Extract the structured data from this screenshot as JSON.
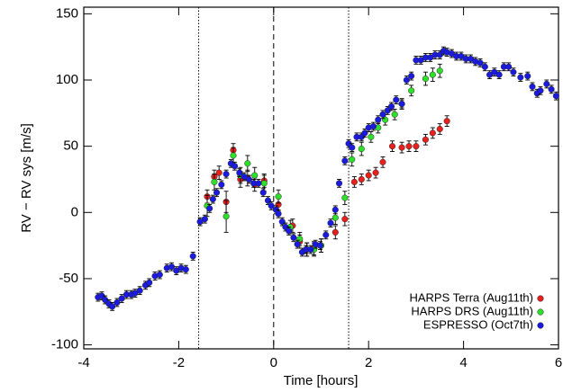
{
  "chart_data": {
    "type": "scatter",
    "xlabel": "Time [hours]",
    "ylabel": "RV − RV sys [m/s]",
    "xlim": [
      -4,
      6
    ],
    "ylim": [
      -103,
      155
    ],
    "xticks": [
      -4,
      -2,
      0,
      2,
      4,
      6
    ],
    "yticks": [
      -100,
      -50,
      0,
      50,
      100,
      150
    ],
    "legend": "lower right",
    "vlines": [
      {
        "x": -1.58,
        "style": "dotted"
      },
      {
        "x": 0,
        "style": "dashed"
      },
      {
        "x": 1.58,
        "style": "dotted"
      }
    ],
    "series": [
      {
        "name": "HARPS Terra (Aug11th)",
        "color": "#e8201c",
        "x": [
          -1.4,
          -1.25,
          -1.15,
          -1.0,
          -0.85,
          -0.7,
          -0.55,
          -0.4,
          -0.2,
          0.1,
          0.4,
          0.55,
          0.7,
          0.85,
          1.0,
          1.3,
          1.5,
          1.7,
          1.85,
          2.0,
          2.15,
          2.3,
          2.5,
          2.7,
          2.85,
          3.0,
          3.2,
          3.35,
          3.5,
          3.65
        ],
        "values": [
          12,
          27,
          30,
          8,
          47,
          25,
          26,
          21,
          24,
          6,
          -10,
          -22,
          -28,
          -27,
          -25,
          -15,
          -5,
          23,
          25,
          28,
          30,
          38,
          50,
          49,
          50,
          50,
          55,
          60,
          63,
          69
        ],
        "errors": [
          5,
          5,
          5,
          8,
          5,
          6,
          6,
          5,
          5,
          5,
          5,
          5,
          5,
          5,
          5,
          5,
          5,
          4,
          4,
          4,
          4,
          4,
          4,
          4,
          4,
          4,
          4,
          4,
          4,
          4
        ]
      },
      {
        "name": "HARPS DRS (Aug11th)",
        "color": "#2ee02a",
        "x": [
          -1.4,
          -1.25,
          -1.0,
          -0.85,
          -0.7,
          -0.55,
          -0.4,
          -0.2,
          0.1,
          0.35,
          0.55,
          0.7,
          0.85,
          1.0,
          1.3,
          1.5,
          1.65,
          1.85,
          2.05,
          2.2,
          2.35,
          2.55,
          2.7,
          2.9,
          3.2,
          3.35,
          3.5
        ],
        "values": [
          5,
          23,
          -3,
          43,
          28,
          37,
          28,
          22,
          12,
          -11,
          -20,
          -28,
          -28,
          -25,
          -4,
          11,
          40,
          48,
          57,
          64,
          70,
          74,
          82,
          92,
          101,
          104,
          107
        ],
        "errors": [
          8,
          6,
          12,
          6,
          6,
          6,
          6,
          6,
          5,
          5,
          5,
          5,
          5,
          5,
          5,
          5,
          5,
          5,
          4,
          4,
          4,
          4,
          4,
          4,
          5,
          5,
          5
        ]
      },
      {
        "name": "ESPRESSO (Oct7th)",
        "color": "#1a1ae0",
        "x": [
          -3.7,
          -3.62,
          -3.55,
          -3.47,
          -3.4,
          -3.3,
          -3.2,
          -3.1,
          -3.0,
          -2.92,
          -2.82,
          -2.7,
          -2.62,
          -2.5,
          -2.4,
          -2.25,
          -2.15,
          -2.05,
          -1.95,
          -1.85,
          -1.7,
          -1.55,
          -1.45,
          -1.35,
          -1.28,
          -1.2,
          -1.1,
          -1.0,
          -0.9,
          -0.82,
          -0.72,
          -0.62,
          -0.52,
          -0.42,
          -0.32,
          -0.22,
          -0.12,
          -0.05,
          0.05,
          0.1,
          0.18,
          0.25,
          0.32,
          0.42,
          0.5,
          0.6,
          0.68,
          0.78,
          0.88,
          0.98,
          1.1,
          1.2,
          1.3,
          1.38,
          1.5,
          1.58,
          1.65,
          1.75,
          1.85,
          1.92,
          2.0,
          2.1,
          2.2,
          2.3,
          2.4,
          2.48,
          2.58,
          2.7,
          2.8,
          2.9,
          3.0,
          3.1,
          3.2,
          3.3,
          3.4,
          3.5,
          3.58,
          3.65,
          3.75,
          3.85,
          3.95,
          4.05,
          4.15,
          4.25,
          4.35,
          4.45,
          4.55,
          4.65,
          4.75,
          4.85,
          4.95,
          5.05,
          5.2,
          5.35,
          5.45,
          5.55,
          5.62,
          5.75,
          5.85,
          5.95
        ],
        "values": [
          -64,
          -63,
          -66,
          -69,
          -71,
          -68,
          -65,
          -62,
          -62,
          -61,
          -59,
          -55,
          -53,
          -48,
          -47,
          -42,
          -41,
          -44,
          -42,
          -43,
          -33,
          -7,
          -5,
          3,
          10,
          15,
          21,
          29,
          37,
          35,
          30,
          27,
          25,
          22,
          22,
          15,
          9,
          5,
          2,
          -1,
          -7,
          -11,
          -14,
          -19,
          -24,
          -30,
          -28,
          -28,
          -24,
          -25,
          -17,
          -8,
          2,
          22,
          39,
          52,
          49,
          57,
          57,
          60,
          64,
          65,
          70,
          74,
          77,
          80,
          85,
          82,
          100,
          103,
          115,
          115,
          117,
          117,
          119,
          119,
          122,
          121,
          120,
          118,
          118,
          116,
          116,
          114,
          113,
          110,
          104,
          106,
          104,
          110,
          110,
          106,
          102,
          103,
          95,
          90,
          92,
          97,
          93,
          88
        ],
        "errors": [
          3,
          3,
          3,
          3,
          3,
          3,
          3,
          3,
          3,
          3,
          3,
          3,
          3,
          3,
          3,
          3,
          3,
          3,
          3,
          3,
          3,
          3,
          3,
          3,
          3,
          3,
          3,
          3,
          3,
          3,
          3,
          3,
          3,
          3,
          3,
          3,
          3,
          3,
          3,
          3,
          3,
          3,
          3,
          3,
          3,
          3,
          3,
          3,
          3,
          3,
          3,
          3,
          3,
          3,
          3,
          3,
          3,
          3,
          3,
          3,
          3,
          3,
          3,
          3,
          3,
          3,
          3,
          3,
          3,
          3,
          3,
          3,
          3,
          3,
          3,
          3,
          3,
          3,
          3,
          3,
          3,
          3,
          3,
          3,
          3,
          3,
          3,
          3,
          3,
          3,
          3,
          3,
          3,
          3,
          3,
          3,
          3,
          3,
          3,
          3
        ]
      }
    ]
  }
}
